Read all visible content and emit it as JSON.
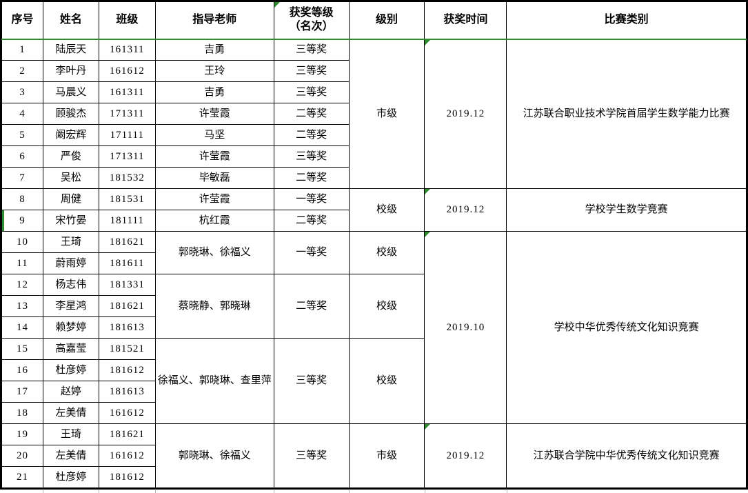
{
  "colors": {
    "border": "#000000",
    "green_accent": "#2e8b2e",
    "grid_gray": "#b3b3b3",
    "background": "#ffffff",
    "text": "#000000"
  },
  "table": {
    "header": {
      "cells": [
        "序号",
        "姓名",
        "班级",
        "指导老师",
        "获奖等级\n（名次）",
        "级别",
        "获奖时间",
        "比赛类别"
      ],
      "flagged_cell_index": 4
    },
    "body": {
      "nos": [
        "1",
        "2",
        "3",
        "4",
        "5",
        "6",
        "7",
        "8",
        "9",
        "10",
        "11",
        "12",
        "13",
        "14",
        "15",
        "16",
        "17",
        "18",
        "19",
        "20",
        "21"
      ],
      "names": [
        "陆辰天",
        "李叶丹",
        "马晨义",
        "顾骏杰",
        "阚宏辉",
        "严俊",
        "吴松",
        "周健",
        "宋竹晏",
        "王琦",
        "蔚雨婷",
        "杨志伟",
        "李星鸿",
        "赖梦婷",
        "高嘉莹",
        "杜彦婷",
        "赵婷",
        "左美倩",
        "王琦",
        "左美倩",
        "杜彦婷"
      ],
      "classes": [
        "161311",
        "161612",
        "161311",
        "171311",
        "171111",
        "171311",
        "181532",
        "181531",
        "181111",
        "181621",
        "181611",
        "181331",
        "181621",
        "181613",
        "181521",
        "181612",
        "181613",
        "161612",
        "181621",
        "161612",
        "181612"
      ],
      "teachers": [
        {
          "text": "吉勇",
          "span": 1
        },
        {
          "text": "王玲",
          "span": 1
        },
        {
          "text": "吉勇",
          "span": 1
        },
        {
          "text": "许莹霞",
          "span": 1
        },
        {
          "text": "马坚",
          "span": 1
        },
        {
          "text": "许莹霞",
          "span": 1
        },
        {
          "text": "毕敏磊",
          "span": 1
        },
        {
          "text": "许莹霞",
          "span": 1
        },
        {
          "text": "杭红霞",
          "span": 1
        },
        {
          "text": "郭晓琳、徐福义",
          "span": 2
        },
        {
          "text": "蔡晓静、郭晓琳",
          "span": 3
        },
        {
          "text": "徐福义、郭晓琳、查里萍",
          "span": 4
        },
        {
          "text": "郭晓琳、徐福义",
          "span": 3
        }
      ],
      "awards": [
        {
          "text": "三等奖",
          "span": 1
        },
        {
          "text": "三等奖",
          "span": 1
        },
        {
          "text": "三等奖",
          "span": 1
        },
        {
          "text": "二等奖",
          "span": 1
        },
        {
          "text": "二等奖",
          "span": 1
        },
        {
          "text": "三等奖",
          "span": 1
        },
        {
          "text": "二等奖",
          "span": 1
        },
        {
          "text": "一等奖",
          "span": 1
        },
        {
          "text": "二等奖",
          "span": 1
        },
        {
          "text": "一等奖",
          "span": 2
        },
        {
          "text": "二等奖",
          "span": 3
        },
        {
          "text": "三等奖",
          "span": 4
        },
        {
          "text": "三等奖",
          "span": 3
        }
      ],
      "levels": [
        {
          "text": "市级",
          "span": 7
        },
        {
          "text": "校级",
          "span": 2
        },
        {
          "text": "校级",
          "span": 2
        },
        {
          "text": "校级",
          "span": 3
        },
        {
          "text": "校级",
          "span": 4
        },
        {
          "text": "市级",
          "span": 3
        }
      ],
      "times": [
        {
          "text": "2019.12",
          "span": 7,
          "flag": true
        },
        {
          "text": "2019.12",
          "span": 2,
          "flag": true
        },
        {
          "text": "2019.10",
          "span": 9,
          "flag": true
        },
        {
          "text": "2019.12",
          "span": 3,
          "flag": true
        }
      ],
      "categories": [
        {
          "text": "江苏联合职业技术学院首届学生数学能力比赛",
          "span": 7
        },
        {
          "text": "学校学生数学竞赛",
          "span": 2
        },
        {
          "text": "学校中华优秀传统文化知识竞赛",
          "span": 9
        },
        {
          "text": "江苏联合学院中华优秀传统文化知识竞赛",
          "span": 3
        }
      ]
    },
    "annotations": {
      "green_header_underline": true,
      "green_left_row": 9
    }
  }
}
